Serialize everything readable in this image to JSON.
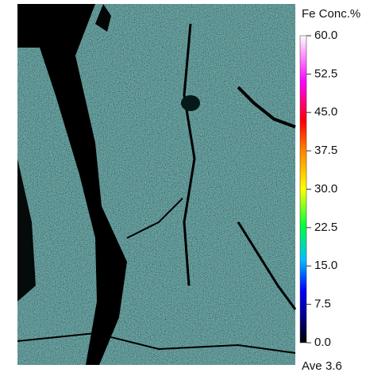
{
  "colorbar": {
    "title": "Fe Conc.%",
    "ticks": [
      {
        "value": 60,
        "label": "60.0"
      },
      {
        "value": 52.5,
        "label": "52.5"
      },
      {
        "value": 45,
        "label": "45.0"
      },
      {
        "value": 37.5,
        "label": "37.5"
      },
      {
        "value": 30,
        "label": "30.0"
      },
      {
        "value": 22.5,
        "label": "22.5"
      },
      {
        "value": 15,
        "label": "15.0"
      },
      {
        "value": 7.5,
        "label": "7.5"
      },
      {
        "value": 0,
        "label": "0.0"
      }
    ]
  },
  "average": {
    "label": "Ave",
    "value": 3.6
  }
}
